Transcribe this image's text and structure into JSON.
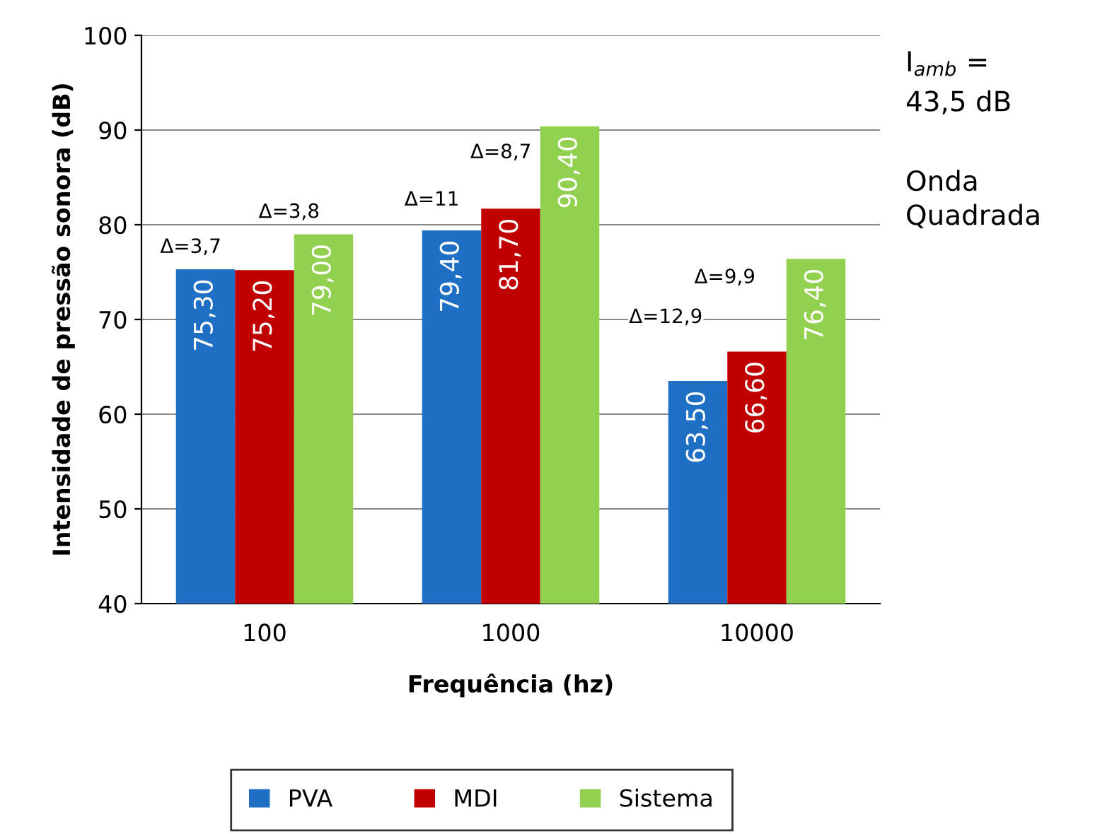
{
  "chart_data": {
    "type": "bar",
    "xlabel": "Frequência (hz)",
    "ylabel": "Intensidade de pressão sonora (dB)",
    "categories": [
      "100",
      "1000",
      "10000"
    ],
    "series": [
      {
        "name": "PVA",
        "color": "#1f6fc5",
        "values": [
          75.3,
          79.4,
          63.5
        ],
        "value_labels": [
          "75,30",
          "79,40",
          "63,50"
        ]
      },
      {
        "name": "MDI",
        "color": "#c00000",
        "values": [
          75.2,
          81.7,
          66.6
        ],
        "value_labels": [
          "75,20",
          "81,70",
          "66,60"
        ]
      },
      {
        "name": "Sistema",
        "color": "#92d050",
        "values": [
          79.0,
          90.4,
          76.4
        ],
        "value_labels": [
          "79,00",
          "90,40",
          "76,40"
        ]
      }
    ],
    "ylim": [
      40,
      100
    ],
    "yticks": [
      40,
      50,
      60,
      70,
      80,
      90,
      100
    ],
    "grid": "y",
    "legend": "bottom",
    "annotations": [
      "Δ=3,7",
      "Δ=3,8",
      "Δ=11",
      "Δ=8,7",
      "Δ=12,9",
      "Δ=9,9",
      "I$_{amb}$ =",
      "43,5 dB",
      "Onda",
      "Quadrada"
    ]
  }
}
